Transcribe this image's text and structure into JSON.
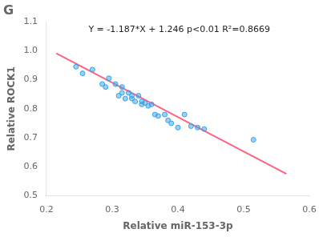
{
  "chart_data": {
    "type": "scatter",
    "title": "G",
    "xlabel": "Relative miR-153-3p",
    "ylabel": "Relative ROCK1",
    "annotations": [
      "Y = -1.187*X + 1.246 p<0.01 R²=0.8669"
    ],
    "series": [
      {
        "type": "scatter",
        "x": [
          0.245,
          0.255,
          0.27,
          0.285,
          0.29,
          0.295,
          0.305,
          0.31,
          0.315,
          0.315,
          0.32,
          0.325,
          0.33,
          0.33,
          0.335,
          0.34,
          0.345,
          0.345,
          0.35,
          0.355,
          0.36,
          0.365,
          0.37,
          0.38,
          0.385,
          0.39,
          0.4,
          0.41,
          0.42,
          0.43,
          0.44,
          0.515
        ],
        "values": [
          0.945,
          0.922,
          0.935,
          0.885,
          0.875,
          0.905,
          0.885,
          0.845,
          0.855,
          0.875,
          0.835,
          0.855,
          0.845,
          0.835,
          0.825,
          0.845,
          0.825,
          0.815,
          0.82,
          0.81,
          0.815,
          0.78,
          0.775,
          0.78,
          0.76,
          0.75,
          0.735,
          0.78,
          0.74,
          0.735,
          0.73,
          0.693
        ]
      },
      {
        "type": "line",
        "x": [
          0.215,
          0.565
        ],
        "values": [
          0.990795,
          0.575345
        ]
      }
    ],
    "xlim": [
      0.2,
      0.6
    ],
    "ylim": [
      0.5,
      1.1
    ],
    "xticks": [
      0.2,
      0.3,
      0.4,
      0.5,
      0.6
    ],
    "yticks": [
      0.5,
      0.6,
      0.7,
      0.8,
      0.9,
      {
        "value": 1.0,
        "label": "1.0"
      },
      1.1
    ],
    "grid": false
  }
}
